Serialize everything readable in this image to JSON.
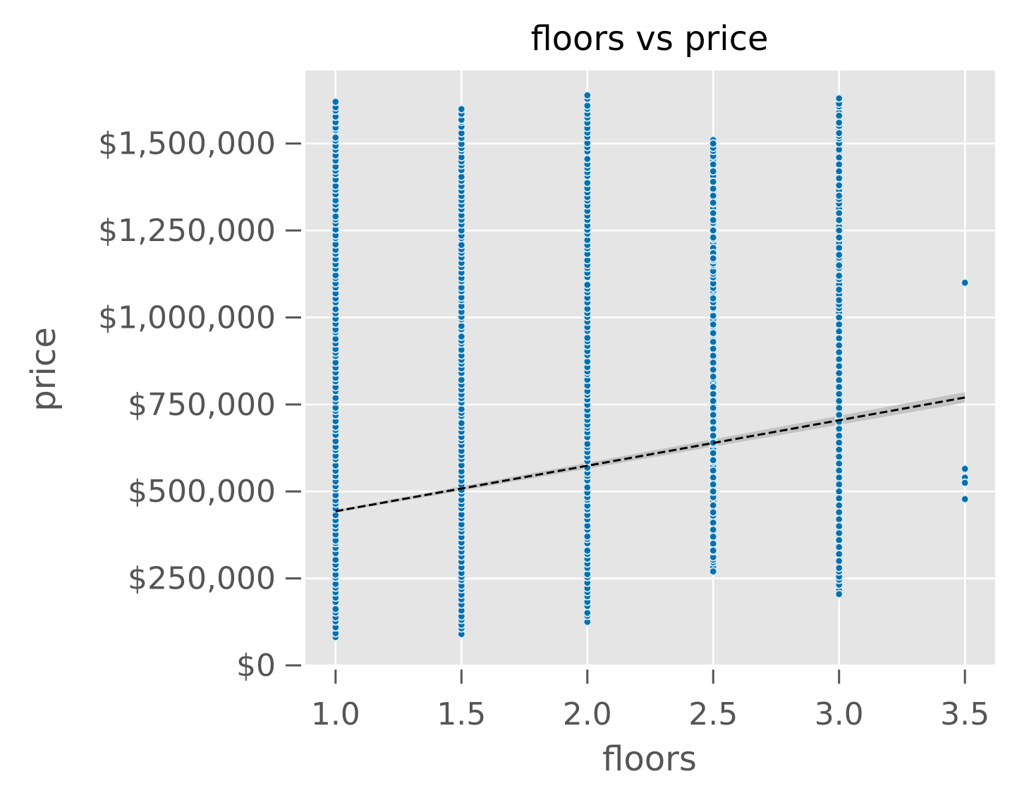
{
  "chart_data": {
    "type": "scatter",
    "title": "floors vs price",
    "xlabel": "floors",
    "ylabel": "price",
    "xlim": [
      0.88,
      3.62
    ],
    "ylim": [
      0,
      1710000
    ],
    "grid": true,
    "x_ticks": [
      {
        "value": 1.0,
        "label": "1.0"
      },
      {
        "value": 1.5,
        "label": "1.5"
      },
      {
        "value": 2.0,
        "label": "2.0"
      },
      {
        "value": 2.5,
        "label": "2.5"
      },
      {
        "value": 3.0,
        "label": "3.0"
      },
      {
        "value": 3.5,
        "label": "3.5"
      }
    ],
    "y_ticks": [
      {
        "value": 0,
        "label": "$0"
      },
      {
        "value": 250000,
        "label": "$250,000"
      },
      {
        "value": 500000,
        "label": "$500,000"
      },
      {
        "value": 750000,
        "label": "$750,000"
      },
      {
        "value": 1000000,
        "label": "$1,000,000"
      },
      {
        "value": 1250000,
        "label": "$1,250,000"
      },
      {
        "value": 1500000,
        "label": "$1,500,000"
      }
    ],
    "colors": {
      "background": "#e5e5e5",
      "grid": "#ffffff",
      "point_fill": "#0a6fad",
      "point_edge": "#d6ecf7",
      "trend": "#000000",
      "band": "#bdbdbd"
    },
    "groups": [
      {
        "x": 1.0,
        "min": 80000,
        "max": 1620000
      },
      {
        "x": 1.5,
        "min": 90000,
        "max": 1600000
      },
      {
        "x": 2.0,
        "min": 125000,
        "max": 1640000
      },
      {
        "x": 2.5,
        "min": 270000,
        "max": 1510000
      },
      {
        "x": 3.0,
        "min": 205000,
        "max": 1630000
      }
    ],
    "series": [
      {
        "type": "scatter",
        "points": [
          [
            2.5,
            1510000
          ],
          [
            2.5,
            1500000
          ],
          [
            2.5,
            1440000
          ],
          [
            2.5,
            1420000
          ],
          [
            2.5,
            1390000
          ],
          [
            2.5,
            1370000
          ],
          [
            2.5,
            1350000
          ],
          [
            2.5,
            1330000
          ],
          [
            2.5,
            1300000
          ],
          [
            2.5,
            1280000
          ],
          [
            2.5,
            1250000
          ],
          [
            2.5,
            1230000
          ],
          [
            2.5,
            1200000
          ],
          [
            2.5,
            1185000
          ],
          [
            2.5,
            1170000
          ],
          [
            2.5,
            1060000
          ],
          [
            2.5,
            1055000
          ],
          [
            2.5,
            980000
          ],
          [
            2.5,
            955000
          ],
          [
            2.5,
            930000
          ],
          [
            2.5,
            910000
          ],
          [
            2.5,
            890000
          ],
          [
            2.5,
            870000
          ],
          [
            2.5,
            850000
          ],
          [
            2.5,
            830000
          ],
          [
            2.5,
            800000
          ],
          [
            2.5,
            780000
          ],
          [
            2.5,
            760000
          ],
          [
            2.5,
            740000
          ],
          [
            2.5,
            720000
          ],
          [
            2.5,
            700000
          ],
          [
            2.5,
            680000
          ],
          [
            2.5,
            660000
          ],
          [
            2.5,
            640000
          ],
          [
            2.5,
            610000
          ],
          [
            2.5,
            590000
          ],
          [
            2.5,
            560000
          ],
          [
            2.5,
            540000
          ],
          [
            2.5,
            520000
          ],
          [
            2.5,
            500000
          ],
          [
            2.5,
            460000
          ],
          [
            2.5,
            440000
          ],
          [
            2.5,
            410000
          ],
          [
            2.5,
            390000
          ],
          [
            2.5,
            370000
          ],
          [
            2.5,
            350000
          ],
          [
            2.5,
            330000
          ],
          [
            2.5,
            270000
          ],
          [
            3.0,
            1630000
          ],
          [
            3.0,
            1580000
          ],
          [
            3.0,
            1560000
          ],
          [
            3.0,
            1530000
          ],
          [
            3.0,
            1460000
          ],
          [
            3.0,
            1440000
          ],
          [
            3.0,
            1420000
          ],
          [
            3.0,
            1400000
          ],
          [
            3.0,
            1380000
          ],
          [
            3.0,
            1350000
          ],
          [
            3.0,
            1300000
          ],
          [
            3.0,
            1280000
          ],
          [
            3.0,
            1250000
          ],
          [
            3.0,
            1230000
          ],
          [
            3.0,
            1200000
          ],
          [
            3.0,
            1180000
          ],
          [
            3.0,
            1150000
          ],
          [
            3.0,
            1120000
          ],
          [
            3.0,
            1080000
          ],
          [
            3.0,
            1050000
          ],
          [
            3.0,
            1000000
          ],
          [
            3.0,
            980000
          ],
          [
            3.0,
            960000
          ],
          [
            3.0,
            940000
          ],
          [
            3.0,
            920000
          ],
          [
            3.0,
            900000
          ],
          [
            3.0,
            880000
          ],
          [
            3.0,
            860000
          ],
          [
            3.0,
            840000
          ],
          [
            3.0,
            820000
          ],
          [
            3.0,
            800000
          ],
          [
            3.0,
            780000
          ],
          [
            3.0,
            760000
          ],
          [
            3.0,
            740000
          ],
          [
            3.0,
            720000
          ],
          [
            3.0,
            700000
          ],
          [
            3.0,
            680000
          ],
          [
            3.0,
            660000
          ],
          [
            3.0,
            640000
          ],
          [
            3.0,
            620000
          ],
          [
            3.0,
            600000
          ],
          [
            3.0,
            580000
          ],
          [
            3.0,
            560000
          ],
          [
            3.0,
            540000
          ],
          [
            3.0,
            520000
          ],
          [
            3.0,
            500000
          ],
          [
            3.0,
            480000
          ],
          [
            3.0,
            460000
          ],
          [
            3.0,
            440000
          ],
          [
            3.0,
            420000
          ],
          [
            3.0,
            400000
          ],
          [
            3.0,
            380000
          ],
          [
            3.0,
            360000
          ],
          [
            3.0,
            340000
          ],
          [
            3.0,
            320000
          ],
          [
            3.0,
            300000
          ],
          [
            3.0,
            280000
          ],
          [
            3.0,
            205000
          ],
          [
            3.5,
            1100000
          ],
          [
            3.5,
            565000
          ],
          [
            3.5,
            540000
          ],
          [
            3.5,
            525000
          ],
          [
            3.5,
            478000
          ]
        ]
      },
      {
        "type": "line",
        "name": "",
        "style": "dashed",
        "x": [
          1.0,
          3.5
        ],
        "y": [
          443000,
          770000
        ],
        "band_halfwidth_end": 15000
      }
    ]
  }
}
